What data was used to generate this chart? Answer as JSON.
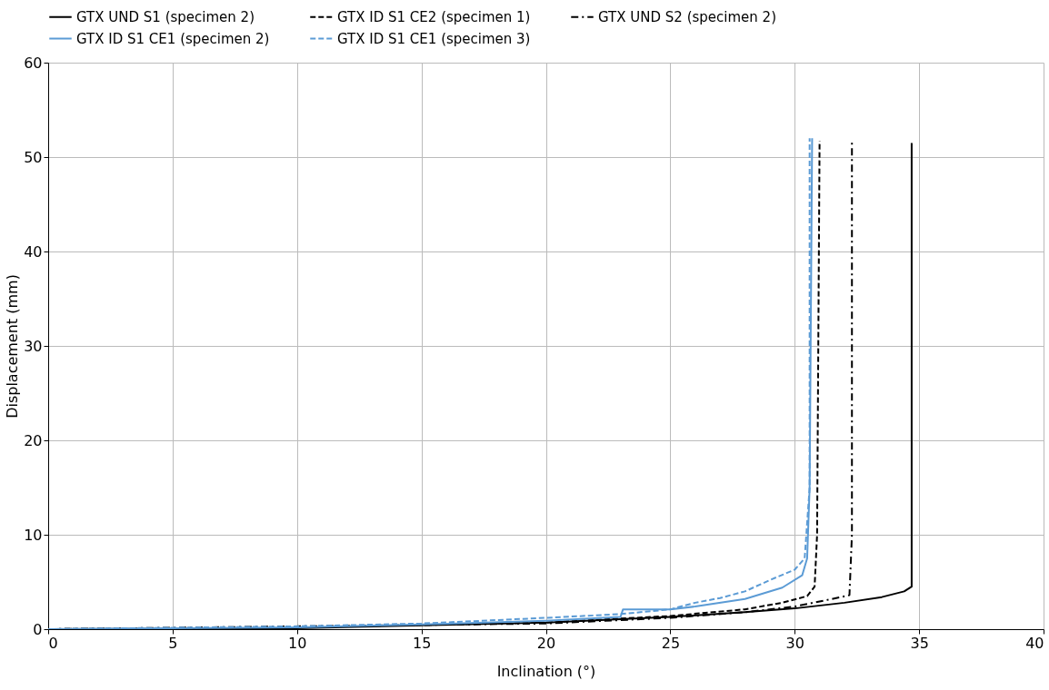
{
  "chart_data": {
    "type": "line",
    "xlabel": "Inclination (°)",
    "ylabel": "Displacement (mm)",
    "xlim": [
      0,
      40
    ],
    "xticks": [
      0,
      5,
      10,
      15,
      20,
      25,
      30,
      35,
      40
    ],
    "ylim": [
      0,
      60
    ],
    "yticks": [
      0,
      10,
      20,
      30,
      40,
      50,
      60
    ],
    "grid": true,
    "legend": "top",
    "marker": "none",
    "series": [
      {
        "name": "GTX UND S1 (specimen 2)",
        "color": "#000000",
        "line_style": "solid",
        "x": [
          0,
          10,
          15,
          20,
          25,
          28,
          30,
          32,
          33.5,
          34.4,
          34.7,
          34.7
        ],
        "values": [
          0,
          0.1,
          0.4,
          0.7,
          1.3,
          1.8,
          2.2,
          2.8,
          3.4,
          4.0,
          4.5,
          51.5
        ]
      },
      {
        "name": "GTX ID S1 CE2 (specimen 1)",
        "color": "#000000",
        "line_style": "dashed",
        "x": [
          0,
          10,
          20,
          25,
          28,
          29.5,
          30.5,
          30.8,
          30.9,
          31.0
        ],
        "values": [
          0,
          0.2,
          0.7,
          1.4,
          2.1,
          2.8,
          3.5,
          4.5,
          10,
          51.7
        ]
      },
      {
        "name": "GTX UND S2 (specimen 2)",
        "color": "#000000",
        "line_style": "dashdot",
        "x": [
          0,
          20,
          25,
          28,
          30,
          31.5,
          32.2,
          32.3,
          32.3
        ],
        "values": [
          0,
          0.6,
          1.2,
          1.8,
          2.4,
          3.2,
          3.6,
          10,
          51.8
        ]
      },
      {
        "name": "GTX ID S1 CE1 (specimen 2)",
        "color": "#5b9bd5",
        "line_style": "solid",
        "x": [
          0,
          10,
          15,
          20,
          23,
          23.1,
          25,
          26,
          28,
          29.5,
          30.3,
          30.5,
          30.6,
          30.7
        ],
        "values": [
          0,
          0.2,
          0.5,
          0.9,
          1.3,
          2.1,
          2.1,
          2.4,
          3.2,
          4.4,
          5.7,
          7.5,
          15,
          52
        ]
      },
      {
        "name": "GTX ID S1 CE1 (specimen 3)",
        "color": "#5b9bd5",
        "line_style": "dashed",
        "x": [
          0,
          10,
          15,
          20,
          23,
          25,
          26,
          27,
          28,
          29,
          30,
          30.4,
          30.6,
          30.6
        ],
        "values": [
          0,
          0.3,
          0.6,
          1.2,
          1.6,
          2.1,
          2.8,
          3.3,
          4.0,
          5.2,
          6.3,
          7.5,
          15,
          52
        ]
      }
    ]
  }
}
